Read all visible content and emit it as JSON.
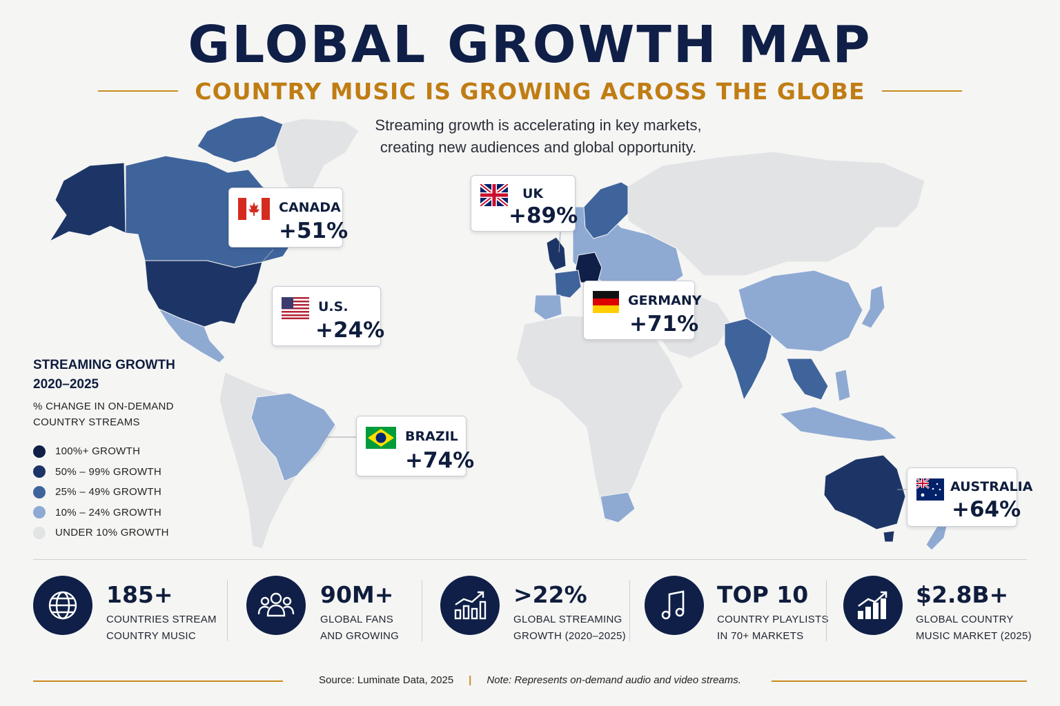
{
  "header": {
    "title": "GLOBAL GROWTH MAP",
    "subtitle": "COUNTRY MUSIC IS GROWING ACROSS THE GLOBE",
    "intro_line1": "Streaming growth is accelerating in key markets,",
    "intro_line2": "creating new audiences and global opportunity."
  },
  "colors": {
    "navy": "#0f1f47",
    "accent_gold": "#c07d14",
    "tier_100_plus": "#0f1f47",
    "tier_50_99": "#1d3566",
    "tier_25_49": "#3f649c",
    "tier_10_24": "#8eaad3",
    "tier_under_10": "#e2e3e5"
  },
  "callouts": [
    {
      "id": "canada",
      "country": "CANADA",
      "growth": "+51%",
      "flag": "canada-flag"
    },
    {
      "id": "uk",
      "country": "UK",
      "growth": "+89%",
      "flag": "uk-flag"
    },
    {
      "id": "us",
      "country": "U.S.",
      "growth": "+24%",
      "flag": "us-flag"
    },
    {
      "id": "germany",
      "country": "GERMANY",
      "growth": "+71%",
      "flag": "germany-flag"
    },
    {
      "id": "brazil",
      "country": "BRAZIL",
      "growth": "+74%",
      "flag": "brazil-flag"
    },
    {
      "id": "australia",
      "country": "AUSTRALIA",
      "growth": "+64%",
      "flag": "australia-flag"
    }
  ],
  "legend": {
    "title_line1": "STREAMING GROWTH",
    "title_line2": "2020–2025",
    "subtitle_line1": "% CHANGE IN ON-DEMAND",
    "subtitle_line2": "COUNTRY STREAMS",
    "items": [
      {
        "label": "100%+ GROWTH",
        "color": "#0f1f47"
      },
      {
        "label": "50% – 99% GROWTH",
        "color": "#1d3566"
      },
      {
        "label": "25% – 49% GROWTH",
        "color": "#3f649c"
      },
      {
        "label": "10% – 24% GROWTH",
        "color": "#8eaad3"
      },
      {
        "label": "UNDER 10% GROWTH",
        "color": "#e2e3e5"
      }
    ]
  },
  "stats": [
    {
      "icon": "globe-icon",
      "value": "185+",
      "line1": "COUNTRIES STREAM",
      "line2": "COUNTRY MUSIC"
    },
    {
      "icon": "people-icon",
      "value": "90M+",
      "line1": "GLOBAL FANS",
      "line2": "AND GROWING"
    },
    {
      "icon": "growth-chart-icon",
      "value": ">22%",
      "line1": "GLOBAL STREAMING",
      "line2": "GROWTH (2020–2025)"
    },
    {
      "icon": "music-note-icon",
      "value": "TOP 10",
      "line1": "COUNTRY PLAYLISTS",
      "line2": "IN 70+ MARKETS"
    },
    {
      "icon": "market-chart-icon",
      "value": "$2.8B+",
      "line1": "GLOBAL COUNTRY",
      "line2": "MUSIC MARKET (2025)"
    }
  ],
  "footer": {
    "source": "Source: Luminate Data, 2025",
    "separator": "|",
    "note": "Note: Represents on-demand audio and video streams."
  }
}
